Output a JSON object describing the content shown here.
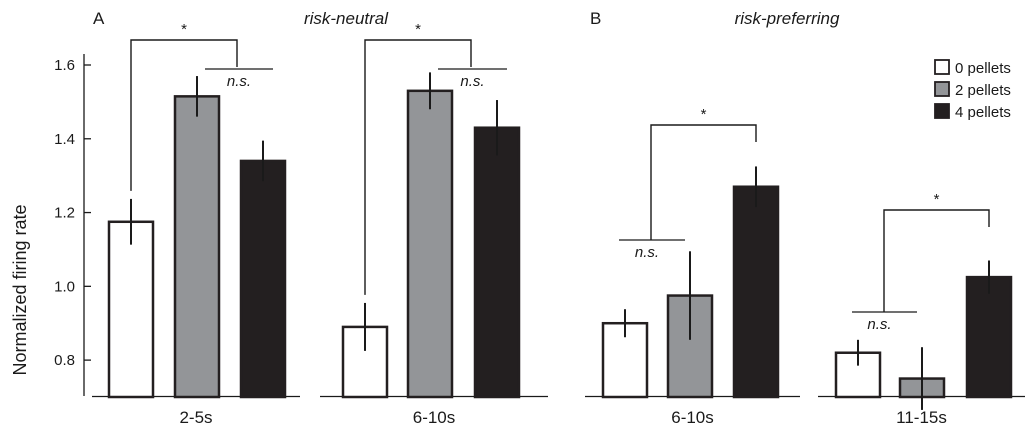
{
  "chart_data": {
    "type": "bar",
    "ylabel": "Normalized firing rate",
    "ylim": [
      0.7,
      1.6
    ],
    "yticks": [
      "0.8",
      "1.0",
      "1.2",
      "1.4",
      "1.6"
    ],
    "ytick_values": [
      0.8,
      1.0,
      1.2,
      1.4,
      1.6
    ],
    "series": [
      {
        "name": "0 pellets",
        "color": "#ffffff"
      },
      {
        "name": "2 pellets",
        "color": "#939598"
      },
      {
        "name": "4 pellets",
        "color": "#231f20"
      }
    ],
    "panels": [
      {
        "letter": "A",
        "title": "risk-neutral",
        "groups": [
          {
            "label": "2-5s",
            "values": [
              1.175,
              1.515,
              1.34
            ],
            "errors": [
              0.062,
              0.055,
              0.055
            ],
            "significance": [
              {
                "text": "*",
                "between": [
                  0,
                  2
                ]
              },
              {
                "text": "n.s.",
                "between": [
                  1,
                  2
                ]
              }
            ]
          },
          {
            "label": "6-10s",
            "values": [
              0.89,
              1.53,
              1.43
            ],
            "errors": [
              0.065,
              0.05,
              0.075
            ],
            "significance": [
              {
                "text": "*",
                "between": [
                  0,
                  2
                ]
              },
              {
                "text": "n.s.",
                "between": [
                  1,
                  2
                ]
              }
            ]
          }
        ]
      },
      {
        "letter": "B",
        "title": "risk-preferring",
        "groups": [
          {
            "label": "6-10s",
            "values": [
              0.9,
              0.975,
              1.27
            ],
            "errors": [
              0.038,
              0.12,
              0.055
            ],
            "significance": [
              {
                "text": "*",
                "between": [
                  0,
                  2
                ]
              },
              {
                "text": "n.s.",
                "between": [
                  0,
                  1
                ]
              }
            ]
          },
          {
            "label": "11-15s",
            "values": [
              0.82,
              0.75,
              1.025
            ],
            "errors": [
              0.035,
              0.085,
              0.045
            ],
            "significance": [
              {
                "text": "*",
                "between": [
                  0,
                  2
                ]
              },
              {
                "text": "n.s.",
                "between": [
                  0,
                  1
                ]
              }
            ]
          }
        ]
      }
    ],
    "legend_position": "top-right"
  }
}
